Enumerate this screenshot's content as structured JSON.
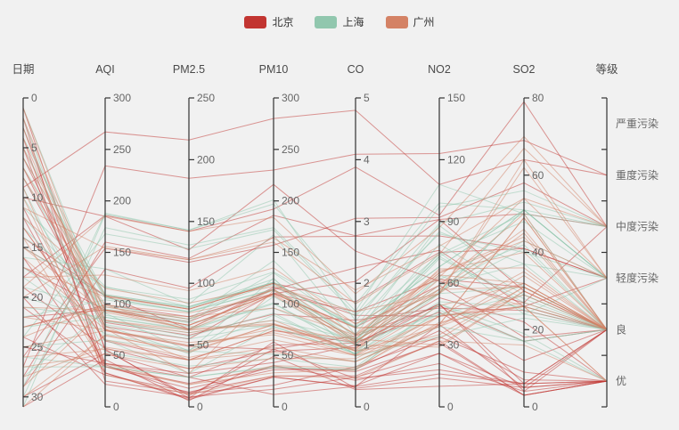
{
  "background": "#f1f1f1",
  "legend": {
    "items": [
      {
        "label": "北京",
        "color": "#c23531"
      },
      {
        "label": "上海",
        "color": "#91c7ae"
      },
      {
        "label": "广州",
        "color": "#d48265"
      }
    ]
  },
  "chart_data": {
    "type": "parallel",
    "title": "",
    "line_opacity": 0.5,
    "axes": [
      {
        "name": "日期",
        "type": "value",
        "min": 0,
        "max": 31,
        "inverse": true,
        "ticks": [
          0,
          5,
          10,
          15,
          20,
          25,
          30
        ]
      },
      {
        "name": "AQI",
        "type": "value",
        "min": 0,
        "max": 300,
        "inverse": false,
        "ticks": [
          0,
          50,
          100,
          150,
          200,
          250,
          300
        ]
      },
      {
        "name": "PM2.5",
        "type": "value",
        "min": 0,
        "max": 250,
        "inverse": false,
        "ticks": [
          0,
          50,
          100,
          150,
          200,
          250
        ]
      },
      {
        "name": "PM10",
        "type": "value",
        "min": 0,
        "max": 300,
        "inverse": false,
        "ticks": [
          0,
          50,
          100,
          150,
          200,
          250,
          300
        ]
      },
      {
        "name": "CO",
        "type": "value",
        "min": 0,
        "max": 5,
        "inverse": false,
        "ticks": [
          0,
          1,
          2,
          3,
          4,
          5
        ]
      },
      {
        "name": "NO2",
        "type": "value",
        "min": 0,
        "max": 150,
        "inverse": false,
        "ticks": [
          0,
          30,
          60,
          90,
          120,
          150
        ]
      },
      {
        "name": "SO2",
        "type": "value",
        "min": 0,
        "max": 80,
        "inverse": false,
        "ticks": [
          0,
          20,
          40,
          60,
          80
        ]
      },
      {
        "name": "等级",
        "type": "category",
        "categories_bottom_to_top": [
          "优",
          "良",
          "轻度污染",
          "中度污染",
          "重度污染",
          "严重污染"
        ]
      }
    ],
    "series": [
      {
        "name": "北京",
        "color": "#c23531",
        "data": [
          [
            1,
            55,
            9,
            56,
            0.46,
            18,
            6,
            "良"
          ],
          [
            2,
            25,
            11,
            21,
            0.65,
            34,
            9,
            "优"
          ],
          [
            3,
            56,
            7,
            63,
            0.3,
            14,
            5,
            "良"
          ],
          [
            4,
            33,
            7,
            29,
            0.33,
            16,
            6,
            "优"
          ],
          [
            5,
            42,
            24,
            12,
            0.33,
            40,
            5,
            "优"
          ],
          [
            6,
            82,
            58,
            90,
            1.4,
            48,
            25,
            "良"
          ],
          [
            7,
            74,
            49,
            56,
            1.15,
            49,
            17,
            "良"
          ],
          [
            8,
            78,
            55,
            110,
            1.29,
            59,
            18,
            "良"
          ],
          [
            9,
            267,
            216,
            280,
            4.8,
            108,
            64,
            "重度污染"
          ],
          [
            10,
            185,
            127,
            216,
            2.52,
            61,
            27,
            "中度污染"
          ],
          [
            11,
            39,
            19,
            38,
            0.57,
            31,
            3,
            "优"
          ],
          [
            12,
            41,
            11,
            40,
            0.43,
            21,
            4,
            "优"
          ],
          [
            13,
            64,
            38,
            74,
            1.04,
            46,
            12,
            "良"
          ],
          [
            14,
            108,
            79,
            120,
            1.7,
            75,
            41,
            "轻度污染"
          ],
          [
            15,
            108,
            63,
            116,
            1.48,
            44,
            26,
            "轻度污染"
          ],
          [
            16,
            33,
            6,
            29,
            0.34,
            26,
            5,
            "优"
          ],
          [
            17,
            94,
            66,
            110,
            1.54,
            62,
            31,
            "良"
          ],
          [
            18,
            186,
            142,
            192,
            3.88,
            93,
            79,
            "中度污染"
          ],
          [
            19,
            57,
            31,
            54,
            0.96,
            50,
            4,
            "良"
          ],
          [
            20,
            22,
            8,
            17,
            0.48,
            26,
            3,
            "优"
          ],
          [
            21,
            39,
            15,
            36,
            0.61,
            37,
            7,
            "优"
          ],
          [
            22,
            94,
            69,
            114,
            2.25,
            76,
            26,
            "良"
          ],
          [
            23,
            99,
            73,
            110,
            2.03,
            91,
            30,
            "良"
          ],
          [
            24,
            31,
            12,
            30,
            0.5,
            32,
            3,
            "优"
          ],
          [
            25,
            42,
            27,
            43,
            1,
            53,
            22,
            "优"
          ],
          [
            26,
            154,
            117,
            157,
            3.05,
            92,
            58,
            "中度污染"
          ],
          [
            27,
            234,
            185,
            230,
            4.09,
            123,
            69,
            "重度污染"
          ],
          [
            28,
            160,
            120,
            186,
            2.77,
            91,
            50,
            "中度污染"
          ],
          [
            29,
            134,
            96,
            165,
            2.76,
            83,
            41,
            "轻度污染"
          ],
          [
            30,
            52,
            24,
            60,
            1.03,
            50,
            6,
            "良"
          ],
          [
            31,
            46,
            5,
            49,
            0.28,
            10,
            6,
            "优"
          ]
        ]
      },
      {
        "name": "上海",
        "color": "#91c7ae",
        "data": [
          [
            1,
            91,
            45,
            125,
            0.82,
            34,
            23,
            "良"
          ],
          [
            2,
            65,
            27,
            78,
            0.86,
            45,
            29,
            "良"
          ],
          [
            3,
            83,
            60,
            84,
            1.09,
            73,
            27,
            "良"
          ],
          [
            4,
            109,
            81,
            121,
            1.28,
            68,
            51,
            "轻度污染"
          ],
          [
            5,
            106,
            77,
            114,
            1.07,
            55,
            51,
            "轻度污染"
          ],
          [
            6,
            109,
            81,
            121,
            1.28,
            68,
            51,
            "轻度污染"
          ],
          [
            7,
            106,
            77,
            114,
            1.07,
            55,
            51,
            "轻度污染"
          ],
          [
            8,
            89,
            65,
            78,
            0.86,
            51,
            26,
            "良"
          ],
          [
            9,
            53,
            33,
            47,
            0.64,
            50,
            17,
            "良"
          ],
          [
            10,
            80,
            55,
            80,
            1.01,
            75,
            24,
            "良"
          ],
          [
            11,
            117,
            81,
            124,
            1.03,
            45,
            24,
            "轻度污染"
          ],
          [
            12,
            99,
            71,
            142,
            1.1,
            62,
            42,
            "良"
          ],
          [
            13,
            95,
            69,
            130,
            1.28,
            74,
            50,
            "良"
          ],
          [
            14,
            116,
            87,
            131,
            1.47,
            84,
            40,
            "轻度污染"
          ],
          [
            15,
            108,
            80,
            121,
            1.3,
            85,
            37,
            "轻度污染"
          ],
          [
            16,
            134,
            83,
            167,
            1.16,
            57,
            43,
            "轻度污染"
          ],
          [
            17,
            79,
            43,
            107,
            1.05,
            59,
            37,
            "良"
          ],
          [
            18,
            71,
            46,
            89,
            0.86,
            64,
            25,
            "良"
          ],
          [
            19,
            97,
            71,
            113,
            1.17,
            88,
            31,
            "良"
          ],
          [
            20,
            84,
            57,
            91,
            0.85,
            55,
            31,
            "良"
          ],
          [
            21,
            87,
            63,
            101,
            0.9,
            56,
            41,
            "良"
          ],
          [
            22,
            104,
            77,
            119,
            1.09,
            73,
            48,
            "轻度污染"
          ],
          [
            23,
            87,
            62,
            100,
            1,
            72,
            28,
            "良"
          ],
          [
            24,
            168,
            128,
            172,
            1.49,
            97,
            56,
            "中度污染"
          ],
          [
            25,
            65,
            45,
            51,
            0.74,
            39,
            17,
            "良"
          ],
          [
            26,
            39,
            24,
            38,
            0.61,
            47,
            17,
            "优"
          ],
          [
            27,
            39,
            24,
            39,
            0.59,
            50,
            19,
            "优"
          ],
          [
            28,
            93,
            68,
            96,
            1.05,
            79,
            29,
            "良"
          ],
          [
            29,
            188,
            143,
            197,
            1.66,
            99,
            51,
            "中度污染"
          ],
          [
            30,
            174,
            131,
            174,
            1.55,
            108,
            50,
            "中度污染"
          ],
          [
            31,
            187,
            143,
            201,
            1.39,
            89,
            53,
            "中度污染"
          ]
        ]
      },
      {
        "name": "广州",
        "color": "#d48265",
        "data": [
          [
            1,
            84,
            60,
            84,
            0.9,
            33,
            31,
            "良"
          ],
          [
            2,
            84,
            62,
            80,
            0.9,
            39,
            34,
            "良"
          ],
          [
            3,
            78,
            38,
            74,
            1.1,
            30,
            30,
            "良"
          ],
          [
            4,
            76,
            27,
            113,
            1,
            29,
            30,
            "良"
          ],
          [
            5,
            94,
            66,
            110,
            1.28,
            40,
            49,
            "良"
          ],
          [
            6,
            108,
            79,
            120,
            1.35,
            55,
            64,
            "轻度污染"
          ],
          [
            7,
            94,
            63,
            114,
            1.07,
            55,
            45,
            "良"
          ],
          [
            8,
            99,
            62,
            109,
            1.11,
            65,
            44,
            "良"
          ],
          [
            9,
            31,
            10,
            30,
            0.47,
            32,
            16,
            "优"
          ],
          [
            10,
            42,
            18,
            40,
            0.63,
            41,
            26,
            "优"
          ],
          [
            11,
            154,
            119,
            160,
            1.67,
            74,
            67,
            "中度污染"
          ],
          [
            12,
            115,
            84,
            117,
            1.54,
            55,
            62,
            "轻度污染"
          ],
          [
            13,
            65,
            40,
            65,
            0.83,
            35,
            31,
            "良"
          ],
          [
            14,
            39,
            18,
            33,
            0.6,
            44,
            26,
            "优"
          ],
          [
            15,
            92,
            63,
            81,
            0.91,
            57,
            31,
            "良"
          ],
          [
            16,
            75,
            50,
            72,
            0.93,
            62,
            26,
            "良"
          ],
          [
            17,
            107,
            79,
            120,
            1.16,
            65,
            43,
            "轻度污染"
          ],
          [
            18,
            128,
            94,
            135,
            1.34,
            63,
            54,
            "轻度污染"
          ],
          [
            19,
            185,
            142,
            184,
            1.83,
            87,
            70,
            "中度污染"
          ],
          [
            20,
            156,
            119,
            164,
            1.89,
            78,
            54,
            "中度污染"
          ],
          [
            21,
            94,
            66,
            110,
            1.28,
            40,
            49,
            "良"
          ],
          [
            22,
            75,
            49,
            76,
            0.83,
            44,
            35,
            "良"
          ],
          [
            23,
            97,
            71,
            114,
            1.18,
            66,
            40,
            "良"
          ],
          [
            24,
            99,
            76,
            108,
            1.05,
            59,
            50,
            "良"
          ],
          [
            25,
            74,
            52,
            70,
            0.84,
            49,
            32,
            "良"
          ],
          [
            26,
            56,
            38,
            53,
            0.73,
            39,
            29,
            "良"
          ],
          [
            27,
            51,
            31,
            47,
            0.78,
            44,
            27,
            "良"
          ],
          [
            28,
            58,
            38,
            58,
            0.73,
            40,
            32,
            "良"
          ],
          [
            29,
            94,
            73,
            96,
            1.16,
            57,
            46,
            "良"
          ],
          [
            30,
            69,
            45,
            80,
            0.94,
            67,
            36,
            "良"
          ],
          [
            31,
            70,
            44,
            80,
            1.05,
            64,
            32,
            "良"
          ]
        ]
      }
    ],
    "axis_colors": {
      "line": "#333333",
      "tick": "#333333",
      "tick_label": "#666666",
      "title": "#4a4a4a"
    }
  }
}
